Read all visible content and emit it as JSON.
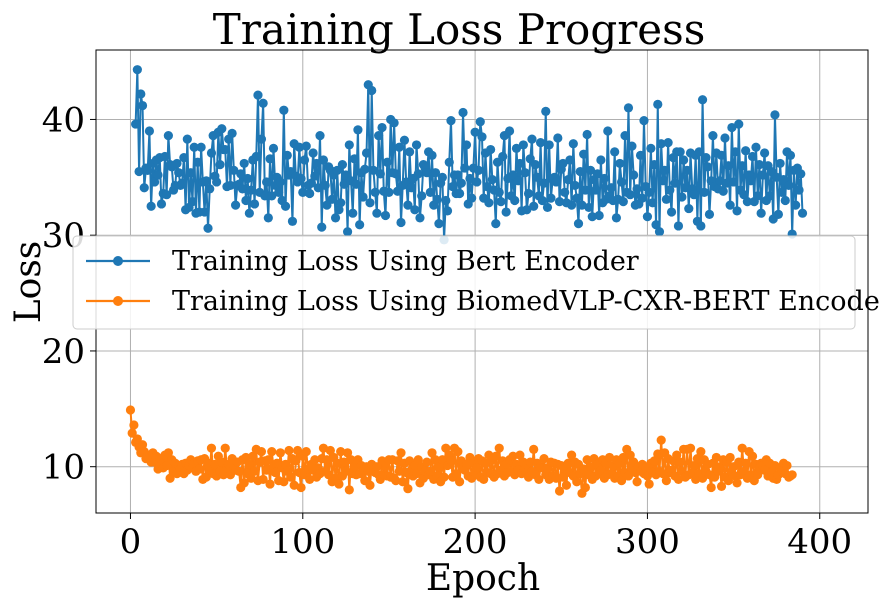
{
  "chart_data": {
    "type": "line",
    "title": "Training Loss Progress",
    "xlabel": "Epoch",
    "ylabel": "Loss",
    "xlim": [
      -20,
      428
    ],
    "ylim": [
      6,
      46
    ],
    "xticks": [
      0,
      100,
      200,
      300,
      400
    ],
    "yticks": [
      10,
      20,
      30,
      40
    ],
    "grid": true,
    "legend": "center-left",
    "series": [
      {
        "name": "Training Loss Using Bert Encoder",
        "color": "#1f77b4",
        "x_start": 3,
        "x_step": 1,
        "values": [
          39.6,
          44.3,
          35.5,
          42.2,
          41.2,
          34.1,
          35.8,
          35.6,
          39.0,
          32.5,
          36.2,
          34.6,
          36.5,
          35.2,
          36.7,
          32.7,
          33.6,
          36.8,
          33.5,
          38.6,
          36.1,
          35.9,
          33.9,
          34.3,
          36.2,
          35.4,
          34.3,
          34.5,
          36.7,
          32.2,
          38.3,
          32.4,
          35.4,
          32.9,
          37.6,
          31.9,
          36.3,
          32.0,
          37.6,
          34.6,
          32.0,
          34.7,
          30.6,
          34.0,
          37.1,
          38.6,
          35.1,
          34.6,
          38.9,
          36.1,
          39.2,
          37.4,
          37.4,
          34.2,
          38.3,
          34.3,
          38.8,
          35.6,
          32.6,
          34.3,
          34.4,
          35.3,
          34.0,
          36.2,
          33.0,
          34.9,
          31.9,
          33.9,
          36.5,
          32.7,
          36.8,
          42.1,
          33.7,
          38.3,
          41.4,
          33.4,
          34.6,
          31.5,
          36.6,
          33.4,
          37.5,
          34.3,
          35.0,
          33.7,
          34.6,
          33.0,
          40.8,
          32.5,
          36.9,
          35.2,
          35.5,
          31.2,
          37.9,
          35.1,
          34.6,
          37.6,
          34.9,
          33.7,
          36.5,
          37.7,
          34.3,
          33.6,
          34.5,
          37.1,
          35.1,
          36.2,
          34.1,
          38.6,
          30.7,
          36.5,
          34.3,
          32.6,
          35.9,
          35.6,
          33.1,
          35.2,
          31.5,
          35.6,
          32.2,
          32.8,
          36.1,
          34.4,
          35.2,
          30.3,
          37.8,
          34.7,
          31.9,
          36.6,
          34.4,
          39.1,
          30.9,
          35.4,
          33.3,
          35.7,
          37.1,
          43.0,
          32.8,
          42.5,
          35.6,
          33.7,
          31.9,
          38.6,
          35.3,
          39.3,
          33.8,
          31.7,
          36.3,
          33.7,
          40.0,
          35.4,
          39.7,
          35.3,
          33.8,
          37.6,
          31.1,
          34.3,
          38.2,
          34.6,
          32.6,
          37.2,
          34.1,
          34.9,
          32.2,
          37.8,
          35.3,
          31.5,
          33.4,
          36.1,
          35.8,
          35.4,
          37.2,
          33.7,
          36.9,
          32.6,
          35.4,
          33.1,
          31.0,
          34.5,
          35.0,
          29.6,
          33.0,
          32.1,
          36.3,
          39.9,
          34.2,
          35.2,
          33.6,
          35.2,
          33.6,
          34.5,
          40.6,
          35.8,
          37.8,
          32.7,
          34.9,
          33.2,
          35.8,
          38.9,
          34.6,
          35.6,
          39.8,
          38.5,
          33.2,
          37.1,
          34.2,
          32.8,
          37.4,
          34.8,
          33.9,
          31.0,
          36.3,
          33.7,
          32.9,
          36.8,
          38.6,
          32.0,
          34.9,
          39.0,
          33.4,
          35.2,
          33.0,
          37.5,
          34.7,
          36.2,
          32.1,
          37.8,
          35.4,
          32.2,
          33.6,
          36.6,
          38.3,
          32.5,
          36.1,
          35.0,
          33.4,
          38.0,
          33.0,
          34.5,
          40.7,
          32.4,
          37.8,
          33.2,
          34.8,
          35.0,
          34.6,
          38.4,
          32.9,
          35.7,
          36.2,
          33.7,
          32.8,
          34.8,
          36.5,
          32.6,
          37.9,
          34.3,
          33.2,
          31.0,
          35.5,
          32.6,
          37.0,
          33.9,
          38.7,
          32.4,
          35.6,
          31.6,
          34.8,
          33.9,
          35.3,
          31.7,
          36.5,
          32.8,
          34.9,
          33.1,
          39.0,
          33.4,
          34.1,
          33.0,
          37.2,
          31.5,
          33.1,
          36.2,
          34.6,
          32.9,
          38.6,
          33.7,
          41.0,
          33.5,
          37.7,
          35.2,
          32.6,
          34.0,
          32.7,
          36.9,
          33.2,
          39.9,
          34.2,
          31.6,
          33.7,
          37.5,
          32.8,
          36.1,
          30.9,
          41.3,
          30.3,
          37.9,
          34.7,
          35.6,
          33.1,
          38.0,
          33.9,
          32.0,
          36.7,
          34.5,
          37.2,
          30.8,
          37.2,
          33.3,
          36.5,
          34.1,
          35.6,
          32.3,
          37.1,
          34.0,
          33.5,
          36.9,
          31.2,
          37.2,
          30.8,
          41.7,
          33.7,
          36.7,
          35.9,
          31.8,
          34.7,
          38.6,
          34.2,
          37.1,
          34.0,
          34.7,
          36.9,
          33.8,
          38.4,
          34.5,
          36.0,
          32.6,
          39.3,
          34.6,
          37.2,
          32.1,
          39.6,
          33.9,
          36.0,
          33.5,
          37.3,
          32.9,
          35.2,
          34.7,
          36.8,
          32.9,
          37.6,
          33.4,
          36.1,
          31.9,
          35.2,
          37.1,
          33.0,
          36.0,
          33.4,
          35.5,
          31.4,
          40.4,
          35.0,
          31.8,
          36.2,
          33.7,
          34.8,
          33.0,
          37.2,
          34.3,
          36.9,
          30.1,
          35.6,
          32.6,
          35.8,
          33.9,
          35.3,
          31.9
        ]
      },
      {
        "name": "Training Loss Using BiomedVLP-CXR-BERT Encoder",
        "color": "#ff7f0e",
        "x_start": 0,
        "x_step": 1,
        "values": [
          14.9,
          12.9,
          13.6,
          12.1,
          12.4,
          11.7,
          11.2,
          11.9,
          11.3,
          10.7,
          11.0,
          10.8,
          10.4,
          11.2,
          10.4,
          10.9,
          9.8,
          10.7,
          10.2,
          9.9,
          11.0,
          10.1,
          11.2,
          9.0,
          10.6,
          9.6,
          10.3,
          9.4,
          10.1,
          9.8,
          10.2,
          9.4,
          10.3,
          9.7,
          10.1,
          10.6,
          9.9,
          10.3,
          9.6,
          10.5,
          9.8,
          10.6,
          8.9,
          10.7,
          9.1,
          10.3,
          9.7,
          11.6,
          9.4,
          10.2,
          9.2,
          10.9,
          9.6,
          10.4,
          9.3,
          11.6,
          9.9,
          10.2,
          9.3,
          10.7,
          9.8,
          9.7,
          10.4,
          9.6,
          8.2,
          10.6,
          8.6,
          10.8,
          9.4,
          10.2,
          9.0,
          10.9,
          9.6,
          11.5,
          8.8,
          10.4,
          11.3,
          8.9,
          10.5,
          9.7,
          10.6,
          8.5,
          11.3,
          10.0,
          9.5,
          10.3,
          8.8,
          11.2,
          9.9,
          8.7,
          10.2,
          9.6,
          11.4,
          9.1,
          10.7,
          8.4,
          10.5,
          11.4,
          9.5,
          8.2,
          10.9,
          9.3,
          11.3,
          9.8,
          8.9,
          10.2,
          9.7,
          10.6,
          9.1,
          9.9,
          9.4,
          10.7,
          11.6,
          9.6,
          10.6,
          9.3,
          11.4,
          8.7,
          10.8,
          9.0,
          10.3,
          8.5,
          11.3,
          9.2,
          10.4,
          9.6,
          11.2,
          8.0,
          10.6,
          9.4,
          10.0,
          9.3,
          10.6,
          9.4,
          10.1,
          9.7,
          8.8,
          10.0,
          9.6,
          8.4,
          10.2,
          9.7,
          9.5,
          10.0,
          9.3,
          8.9,
          10.5,
          9.3,
          10.3,
          9.2,
          10.6,
          9.1,
          10.6,
          9.0,
          8.8,
          10.5,
          9.6,
          11.2,
          8.7,
          10.3,
          9.5,
          8.1,
          10.5,
          9.7,
          9.2,
          10.1,
          9.4,
          10.6,
          8.6,
          10.0,
          9.0,
          9.6,
          10.4,
          9.3,
          9.6,
          11.2,
          8.9,
          10.6,
          9.2,
          10.0,
          8.7,
          10.6,
          9.1,
          11.6,
          10.1,
          11.0,
          10.5,
          9.1,
          11.6,
          9.4,
          11.3,
          8.7,
          10.5,
          9.9,
          9.7,
          10.2,
          9.2,
          10.8,
          9.0,
          10.3,
          9.5,
          9.9,
          10.7,
          9.1,
          10.5,
          8.9,
          10.3,
          9.5,
          11.0,
          9.4,
          10.6,
          9.1,
          10.9,
          9.4,
          11.6,
          9.7,
          10.5,
          9.2,
          10.2,
          9.5,
          10.6,
          9.6,
          10.9,
          9.3,
          10.2,
          9.7,
          11.0,
          9.4,
          10.4,
          9.8,
          10.2,
          9.1,
          10.4,
          9.6,
          11.5,
          9.3,
          10.3,
          8.9,
          10.0,
          9.9,
          10.7,
          9.3,
          9.9,
          8.9,
          10.4,
          9.2,
          10.3,
          9.0,
          10.2,
          7.9,
          10.1,
          9.1,
          9.8,
          8.4,
          10.3,
          9.5,
          11.0,
          9.2,
          10.4,
          8.7,
          10.2,
          9.4,
          7.7,
          9.8,
          8.2,
          10.6,
          9.3,
          10.0,
          8.9,
          10.7,
          9.2,
          10.2,
          9.5,
          9.7,
          10.6,
          9.0,
          10.3,
          9.3,
          10.8,
          9.4,
          10.1,
          9.0,
          10.6,
          9.2,
          10.3,
          8.8,
          10.8,
          9.5,
          11.5,
          9.2,
          11.0,
          9.8,
          10.4,
          9.5,
          8.7,
          10.0,
          9.6,
          10.2,
          9.4,
          9.9,
          9.2,
          8.5,
          10.3,
          9.5,
          10.5,
          9.3,
          11.1,
          9.6,
          12.3,
          9.4,
          11.2,
          8.8,
          10.7,
          9.5,
          9.7,
          10.5,
          9.2,
          11.0,
          8.9,
          10.4,
          9.6,
          11.5,
          9.1,
          11.5,
          9.3,
          11.6,
          9.5,
          10.1,
          8.9,
          10.7,
          9.4,
          11.3,
          9.0,
          10.6,
          9.6,
          10.2,
          9.3,
          8.2,
          10.3,
          9.1,
          10.8,
          9.6,
          10.0,
          8.3,
          10.6,
          9.1,
          10.4,
          8.8,
          10.8,
          9.5,
          10.0,
          9.2,
          8.6,
          10.4,
          9.3,
          11.6,
          9.6,
          10.3,
          9.0,
          11.3,
          9.3,
          10.9,
          8.8,
          10.2,
          9.3,
          9.9,
          10.3,
          10.1,
          9.7,
          10.6,
          9.2,
          10.3,
          9.5,
          9.0,
          10.1,
          8.9,
          9.3,
          9.9,
          9.6,
          10.3,
          9.4,
          10.1,
          9.1,
          9.2,
          9.3
        ]
      }
    ]
  }
}
